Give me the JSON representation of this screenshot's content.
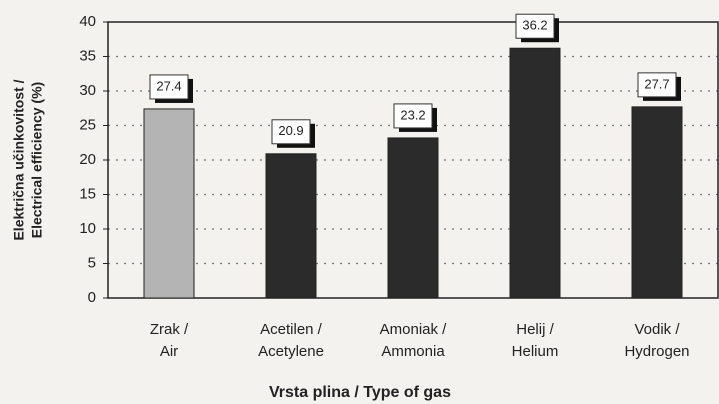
{
  "chart_data": {
    "type": "bar",
    "categories": [
      [
        "Zrak /",
        "Air"
      ],
      [
        "Acetilen /",
        "Acetylene"
      ],
      [
        "Amoniak /",
        "Ammonia"
      ],
      [
        "Helij /",
        "Helium"
      ],
      [
        "Vodik /",
        "Hydrogen"
      ]
    ],
    "values": [
      27.4,
      20.9,
      23.2,
      36.2,
      27.7
    ],
    "colors": [
      "#b4b4b4",
      "#2b2b2b",
      "#2b2b2b",
      "#2b2b2b",
      "#2b2b2b"
    ],
    "ylabel": [
      "Električna učinkovitost /",
      "Electrical efficiency (%)"
    ],
    "xlabel": "Vrsta plina / Type of gas",
    "ylim": [
      0,
      40
    ],
    "yticks": [
      0,
      5,
      10,
      15,
      20,
      25,
      30,
      35,
      40
    ],
    "grid": true
  }
}
